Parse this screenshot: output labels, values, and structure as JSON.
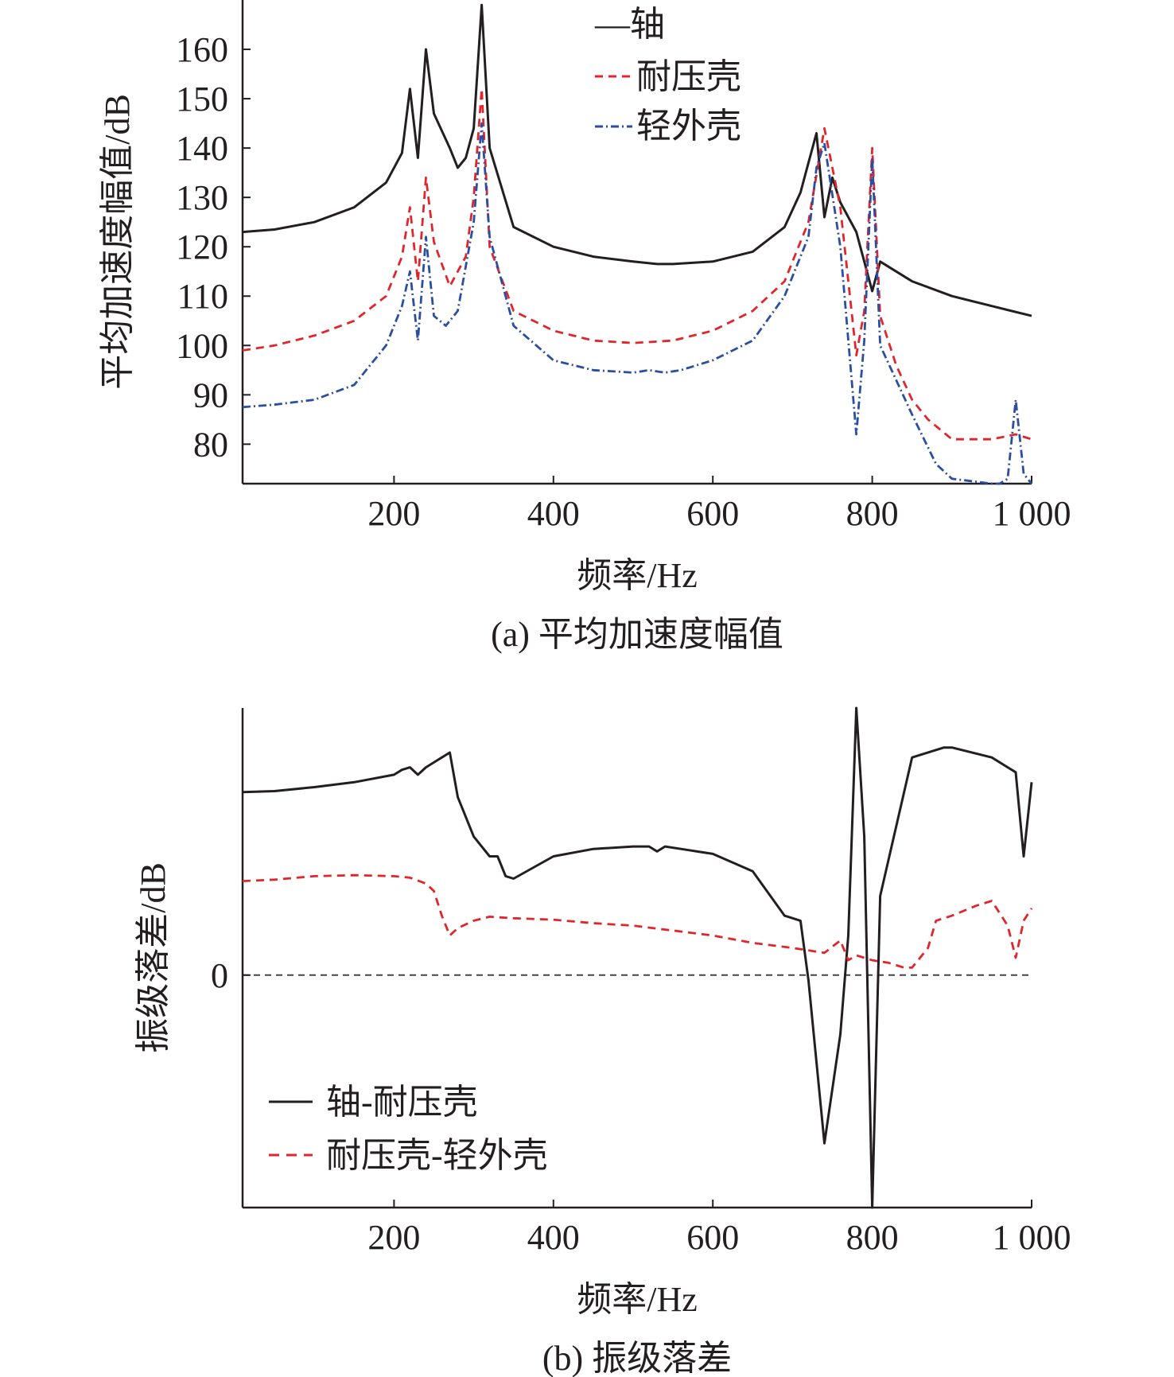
{
  "chart_data": [
    {
      "id": "a",
      "type": "line",
      "caption": "(a) 平均加速度幅值",
      "xlabel": "频率/Hz",
      "ylabel": "平均加速度幅值/dB",
      "xlim": [
        10,
        1000
      ],
      "ylim": [
        72,
        170
      ],
      "xticks": [
        200,
        400,
        600,
        800,
        1000
      ],
      "xtick_labels": [
        "200",
        "400",
        "600",
        "800",
        "1 000"
      ],
      "yticks": [
        80,
        90,
        100,
        110,
        120,
        130,
        140,
        150,
        160
      ],
      "ytick_labels": [
        "80",
        "90",
        "100",
        "110",
        "120",
        "130",
        "140",
        "150",
        "160"
      ],
      "grid": false,
      "legend_position": "top-center",
      "series": [
        {
          "name": "轴",
          "legend_label": "—轴",
          "color": "#231f20",
          "style": "solid",
          "x": [
            10,
            50,
            100,
            150,
            190,
            210,
            220,
            230,
            240,
            250,
            270,
            280,
            290,
            300,
            310,
            320,
            350,
            400,
            450,
            500,
            530,
            550,
            600,
            650,
            690,
            710,
            720,
            730,
            740,
            750,
            760,
            780,
            790,
            800,
            810,
            850,
            900,
            950,
            1000
          ],
          "y": [
            123,
            123.5,
            125,
            128,
            133,
            139,
            152,
            138,
            160,
            147,
            140,
            136,
            138,
            144,
            169,
            140,
            124,
            120,
            118,
            117,
            116.5,
            116.5,
            117,
            119,
            124,
            131,
            137,
            143,
            126,
            134,
            129,
            123,
            117,
            111,
            117,
            113,
            110,
            108,
            106
          ]
        },
        {
          "name": "耐压壳",
          "legend_label": "耐压壳",
          "color": "#e0262c",
          "style": "dashed",
          "x": [
            10,
            50,
            100,
            150,
            190,
            210,
            220,
            230,
            240,
            250,
            270,
            290,
            300,
            310,
            320,
            350,
            400,
            450,
            500,
            550,
            600,
            650,
            690,
            720,
            740,
            760,
            780,
            790,
            800,
            810,
            830,
            850,
            870,
            900,
            950,
            980,
            1000
          ],
          "y": [
            99,
            100,
            102,
            105,
            110,
            118,
            128,
            113,
            134,
            121,
            112,
            118,
            130,
            152,
            120,
            107,
            103,
            101,
            100.5,
            101,
            103,
            107,
            113,
            125,
            144,
            128,
            98,
            107,
            140,
            106,
            96,
            89,
            85,
            81,
            81,
            82,
            81
          ]
        },
        {
          "name": "轻外壳",
          "legend_label": "轻外壳",
          "color": "#2b4fa0",
          "style": "dashdot",
          "x": [
            10,
            50,
            100,
            150,
            190,
            210,
            220,
            230,
            240,
            250,
            265,
            280,
            300,
            310,
            320,
            350,
            400,
            450,
            500,
            520,
            540,
            560,
            600,
            650,
            690,
            720,
            730,
            740,
            760,
            780,
            790,
            800,
            810,
            830,
            850,
            880,
            900,
            950,
            960,
            970,
            980,
            990,
            1000
          ],
          "y": [
            87.5,
            88,
            89,
            92,
            100,
            108,
            115,
            101,
            122,
            106,
            104,
            107,
            125,
            145,
            122,
            104,
            97,
            95,
            94.5,
            95,
            94.5,
            95,
            97,
            101,
            110,
            122,
            136,
            141,
            120,
            82,
            101,
            138,
            100,
            93,
            86,
            76,
            73,
            72,
            72,
            73,
            89,
            74,
            72
          ]
        }
      ]
    },
    {
      "id": "b",
      "type": "line",
      "caption": "(b) 振级落差",
      "xlabel": "频率/Hz",
      "ylabel": "振级落差/dB",
      "xlim": [
        10,
        1000
      ],
      "ylim": [
        -47,
        54
      ],
      "xticks": [
        200,
        400,
        600,
        800,
        1000
      ],
      "xtick_labels": [
        "200",
        "400",
        "600",
        "800",
        "1 000"
      ],
      "yticks": [
        0
      ],
      "ytick_labels": [
        "0"
      ],
      "zero_line": true,
      "grid": false,
      "legend_position": "bottom-left",
      "series": [
        {
          "name": "轴-耐压壳",
          "legend_label": "轴-耐压壳",
          "color": "#231f20",
          "style": "solid",
          "x": [
            10,
            50,
            100,
            150,
            200,
            210,
            220,
            230,
            240,
            250,
            260,
            270,
            280,
            300,
            320,
            330,
            340,
            350,
            400,
            450,
            500,
            520,
            530,
            540,
            560,
            600,
            650,
            690,
            710,
            720,
            740,
            760,
            770,
            780,
            790,
            800,
            810,
            850,
            890,
            900,
            950,
            980,
            990,
            1000
          ],
          "y": [
            37,
            37.2,
            38,
            39,
            40.5,
            41.5,
            42,
            40.5,
            42,
            43,
            44,
            45,
            36,
            28,
            24,
            24,
            20,
            19.5,
            24,
            25.5,
            26,
            26,
            25,
            26,
            25.5,
            24.5,
            21,
            12,
            11,
            -1,
            -34,
            -12,
            8,
            54,
            28,
            -47,
            16,
            44,
            46,
            46,
            44,
            41,
            24,
            39
          ]
        },
        {
          "name": "耐压壳-轻外壳",
          "legend_label": "耐压壳-轻外壳",
          "color": "#e0262c",
          "style": "dashed",
          "x": [
            10,
            50,
            100,
            150,
            200,
            220,
            240,
            250,
            260,
            270,
            280,
            300,
            320,
            350,
            400,
            450,
            500,
            550,
            600,
            650,
            700,
            740,
            760,
            770,
            780,
            790,
            800,
            820,
            840,
            850,
            870,
            880,
            900,
            930,
            950,
            970,
            980,
            990,
            1000
          ],
          "y": [
            19,
            19.3,
            20,
            20.2,
            20,
            19.7,
            18.5,
            17,
            12,
            8,
            9.5,
            11,
            11.8,
            11.5,
            11.2,
            10.5,
            10,
            9,
            8,
            6.5,
            5.5,
            4.5,
            7,
            3,
            4,
            3.5,
            3,
            2.5,
            1.5,
            1.5,
            5.5,
            11,
            12,
            14,
            15,
            10,
            3.5,
            11,
            13.5
          ]
        }
      ]
    }
  ]
}
